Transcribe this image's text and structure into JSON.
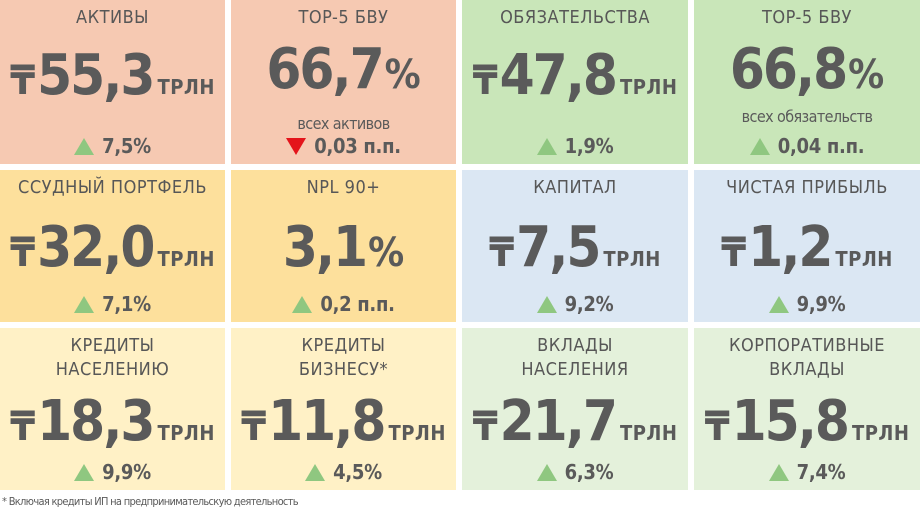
{
  "tiles": [
    {
      "title": "АКТИВЫ",
      "currency": "₸",
      "value": "55,3",
      "unit": "ТРЛН",
      "sub": "",
      "change": "7,5%",
      "direction": "up"
    },
    {
      "title": "TOP-5 БВУ",
      "currency": "",
      "value": "66,7",
      "unit": "%",
      "sub": "всех активов",
      "change": "0,03 п.п.",
      "direction": "down"
    },
    {
      "title": "ОБЯЗАТЕЛЬСТВА",
      "currency": "₸",
      "value": "47,8",
      "unit": "ТРЛН",
      "sub": "",
      "change": "1,9%",
      "direction": "up"
    },
    {
      "title": "TOP-5 БВУ",
      "currency": "",
      "value": "66,8",
      "unit": "%",
      "sub": "всех обязательств",
      "change": "0,04 п.п.",
      "direction": "up"
    },
    {
      "title": "ССУДНЫЙ ПОРТФЕЛЬ",
      "currency": "₸",
      "value": "32,0",
      "unit": "ТРЛН",
      "sub": "",
      "change": "7,1%",
      "direction": "up"
    },
    {
      "title": "NPL 90+",
      "currency": "",
      "value": "3,1",
      "unit": "%",
      "sub": "",
      "change": "0,2 п.п.",
      "direction": "up"
    },
    {
      "title": "КАПИТАЛ",
      "currency": "₸",
      "value": "7,5",
      "unit": "ТРЛН",
      "sub": "",
      "change": "9,2%",
      "direction": "up"
    },
    {
      "title": "ЧИСТАЯ ПРИБЫЛЬ",
      "currency": "₸",
      "value": "1,2",
      "unit": "ТРЛН",
      "sub": "",
      "change": "9,9%",
      "direction": "up"
    },
    {
      "title_line1": "КРЕДИТЫ",
      "title_line2": "НАСЕЛЕНИЮ",
      "currency": "₸",
      "value": "18,3",
      "unit": "ТРЛН",
      "change": "9,9%",
      "direction": "up"
    },
    {
      "title_line1": "КРЕДИТЫ",
      "title_line2": "БИЗНЕСУ*",
      "currency": "₸",
      "value": "11,8",
      "unit": "ТРЛН",
      "change": "4,5%",
      "direction": "up"
    },
    {
      "title_line1": "ВКЛАДЫ",
      "title_line2": "НАСЕЛЕНИЯ",
      "currency": "₸",
      "value": "21,7",
      "unit": "ТРЛН",
      "change": "6,3%",
      "direction": "up"
    },
    {
      "title_line1": "КОРПОРАТИВНЫЕ",
      "title_line2": "ВКЛАДЫ",
      "currency": "₸",
      "value": "15,8",
      "unit": "ТРЛН",
      "change": "7,4%",
      "direction": "up"
    }
  ],
  "colors": {
    "peach": "#f6c9b2",
    "green": "#c9e6b9",
    "yellow": "#fde09c",
    "blue": "#dbe7f3",
    "cream": "#fff1c6",
    "mint": "#e4f1db",
    "up_arrow": "#8fc780",
    "down_arrow": "#e4141b",
    "text": "#5a5a5a"
  },
  "footnote": "* Включая кредиты ИП на предпринимательскую деятельность"
}
